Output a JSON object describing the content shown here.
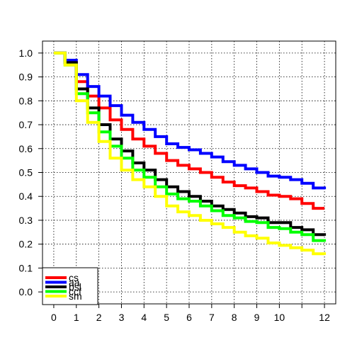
{
  "chart_data": {
    "type": "line",
    "step": true,
    "title": "",
    "xlabel": "",
    "ylabel": "",
    "xlim": [
      -0.5,
      12.5
    ],
    "ylim": [
      -0.05,
      1.05
    ],
    "x_ticks": [
      0,
      1,
      2,
      3,
      4,
      5,
      6,
      7,
      8,
      9,
      10,
      11,
      12
    ],
    "x_tick_labels": [
      "0",
      "1",
      "2",
      "3",
      "4",
      "5",
      "6",
      "7",
      "8",
      "9",
      "10",
      "",
      "12"
    ],
    "y_ticks": [
      0.0,
      0.1,
      0.2,
      0.3,
      0.4,
      0.5,
      0.6,
      0.7,
      0.8,
      0.9,
      1.0
    ],
    "y_tick_labels": [
      "0.0",
      "0.1",
      "0.2",
      "0.3",
      "0.4",
      "0.5",
      "0.6",
      "0.7",
      "0.8",
      "0.9",
      "1.0"
    ],
    "grid": true,
    "grid_style": "dotted",
    "legend_position": "bottom-left",
    "series": [
      {
        "name": "cs",
        "color": "#ff0000",
        "x": [
          0,
          0.5,
          1,
          1.5,
          2,
          2.5,
          3,
          3.5,
          4,
          4.5,
          5,
          5.5,
          6,
          6.5,
          7,
          7.5,
          8,
          8.5,
          9,
          9.5,
          10,
          10.5,
          11,
          11.5,
          12
        ],
        "y": [
          1.0,
          0.96,
          0.88,
          0.82,
          0.77,
          0.72,
          0.68,
          0.64,
          0.61,
          0.58,
          0.55,
          0.53,
          0.515,
          0.5,
          0.48,
          0.46,
          0.445,
          0.435,
          0.42,
          0.405,
          0.4,
          0.39,
          0.37,
          0.35,
          0.35
        ]
      },
      {
        "name": "aa",
        "color": "#0000ff",
        "x": [
          0,
          0.5,
          1,
          1.5,
          2,
          2.5,
          3,
          3.5,
          4,
          4.5,
          5,
          5.5,
          6,
          6.5,
          7,
          7.5,
          8,
          8.5,
          9,
          9.5,
          10,
          10.5,
          11,
          11.5,
          12
        ],
        "y": [
          1.0,
          0.97,
          0.91,
          0.86,
          0.82,
          0.78,
          0.74,
          0.71,
          0.68,
          0.65,
          0.62,
          0.605,
          0.595,
          0.58,
          0.565,
          0.545,
          0.53,
          0.515,
          0.5,
          0.485,
          0.48,
          0.47,
          0.455,
          0.435,
          0.43
        ]
      },
      {
        "name": "bsl",
        "color": "#000000",
        "x": [
          0,
          0.5,
          1,
          1.5,
          2,
          2.5,
          3,
          3.5,
          4,
          4.5,
          5,
          5.5,
          6,
          6.5,
          7,
          7.5,
          8,
          8.5,
          9,
          9.5,
          10,
          10.5,
          11,
          11.5,
          12
        ],
        "y": [
          1.0,
          0.96,
          0.85,
          0.77,
          0.7,
          0.64,
          0.59,
          0.54,
          0.51,
          0.47,
          0.44,
          0.42,
          0.4,
          0.38,
          0.36,
          0.345,
          0.33,
          0.315,
          0.31,
          0.29,
          0.29,
          0.27,
          0.26,
          0.24,
          0.235
        ]
      },
      {
        "name": "ccf",
        "color": "#00ff00",
        "x": [
          0,
          0.5,
          1,
          1.5,
          2,
          2.5,
          3,
          3.5,
          4,
          4.5,
          5,
          5.5,
          6,
          6.5,
          7,
          7.5,
          8,
          8.5,
          9,
          9.5,
          10,
          10.5,
          11,
          11.5,
          12
        ],
        "y": [
          1.0,
          0.95,
          0.83,
          0.75,
          0.67,
          0.61,
          0.56,
          0.51,
          0.48,
          0.44,
          0.41,
          0.39,
          0.38,
          0.36,
          0.34,
          0.32,
          0.31,
          0.295,
          0.29,
          0.27,
          0.265,
          0.25,
          0.24,
          0.215,
          0.21
        ]
      },
      {
        "name": "sm",
        "color": "#ffff00",
        "x": [
          0,
          0.5,
          1,
          1.5,
          2,
          2.5,
          3,
          3.5,
          4,
          4.5,
          5,
          5.5,
          6,
          6.5,
          7,
          7.5,
          8,
          8.5,
          9,
          9.5,
          10,
          10.5,
          11,
          11.5,
          12
        ],
        "y": [
          1.0,
          0.95,
          0.8,
          0.71,
          0.63,
          0.56,
          0.51,
          0.47,
          0.44,
          0.4,
          0.36,
          0.335,
          0.32,
          0.3,
          0.285,
          0.27,
          0.25,
          0.235,
          0.225,
          0.205,
          0.195,
          0.185,
          0.175,
          0.16,
          0.155
        ]
      }
    ],
    "legend": [
      {
        "label": "cs",
        "color": "#ff0000"
      },
      {
        "label": "aa",
        "color": "#0000ff"
      },
      {
        "label": "bsl",
        "color": "#000000"
      },
      {
        "label": "ccf",
        "color": "#00ff00"
      },
      {
        "label": "sm",
        "color": "#ffff00"
      }
    ]
  }
}
